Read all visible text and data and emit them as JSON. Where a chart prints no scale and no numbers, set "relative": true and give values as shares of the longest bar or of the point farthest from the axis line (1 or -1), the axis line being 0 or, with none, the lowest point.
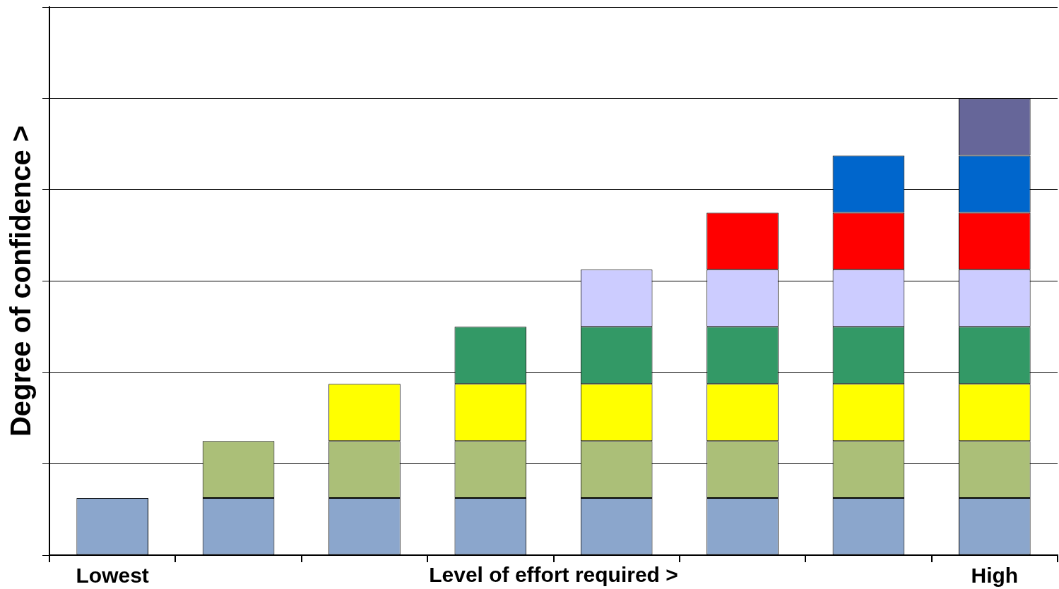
{
  "chart_data": {
    "type": "bar",
    "stacked": true,
    "relative": true,
    "grid": "y",
    "legend": false,
    "xlabel": "Level of effort required >",
    "ylabel": "Degree of confidence >",
    "categories": [
      "Lowest",
      null,
      null,
      null,
      null,
      null,
      null,
      "High"
    ],
    "series": [
      {
        "color": "#8ba6cc",
        "values": [
          0.125,
          0.125,
          0.125,
          0.125,
          0.125,
          0.125,
          0.125,
          0.125
        ]
      },
      {
        "color": "#abbf78",
        "values": [
          null,
          0.125,
          0.125,
          0.125,
          0.125,
          0.125,
          0.125,
          0.125
        ]
      },
      {
        "color": "#ffff00",
        "values": [
          null,
          null,
          0.125,
          0.125,
          0.125,
          0.125,
          0.125,
          0.125
        ]
      },
      {
        "color": "#339966",
        "values": [
          null,
          null,
          null,
          0.125,
          0.125,
          0.125,
          0.125,
          0.125
        ]
      },
      {
        "color": "#ccccff",
        "values": [
          null,
          null,
          null,
          null,
          0.125,
          0.125,
          0.125,
          0.125
        ]
      },
      {
        "color": "#ff0000",
        "values": [
          null,
          null,
          null,
          null,
          null,
          0.125,
          0.125,
          0.125
        ]
      },
      {
        "color": "#0066cc",
        "values": [
          null,
          null,
          null,
          null,
          null,
          null,
          0.125,
          0.125
        ]
      },
      {
        "color": "#666699",
        "values": [
          null,
          null,
          null,
          null,
          null,
          null,
          null,
          0.125
        ]
      }
    ]
  }
}
